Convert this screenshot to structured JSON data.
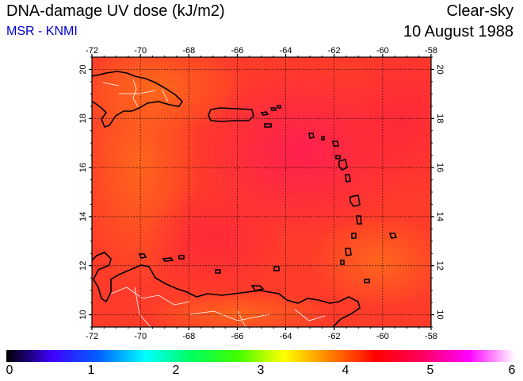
{
  "header": {
    "title": "DNA-damage UV dose (kJ/m2)",
    "credit": "MSR - KNMI",
    "sky": "Clear-sky",
    "date": "10 August 1988"
  },
  "map": {
    "lon_ticks": [
      "-72",
      "-70",
      "-68",
      "-66",
      "-64",
      "-62",
      "-60",
      "-58"
    ],
    "lat_ticks": [
      "10",
      "12",
      "14",
      "16",
      "18",
      "20"
    ],
    "lon_range": [
      -72,
      -58
    ],
    "lat_range": [
      9.5,
      20.5
    ],
    "colors": {
      "base": "#ff3b2a",
      "low": "#ff6a1a",
      "high": "#ff1a50",
      "coast": "#000000",
      "border": "#ffffff",
      "grid": "#000000"
    }
  },
  "legend": {
    "labels": [
      "0",
      "1",
      "2",
      "3",
      "4",
      "5",
      "6"
    ],
    "range": [
      0,
      6
    ],
    "stops": [
      "#000000",
      "#4000ff",
      "#0060ff",
      "#00ffff",
      "#00ff60",
      "#40ff00",
      "#ffff00",
      "#ff8000",
      "#ff0000",
      "#ff0060",
      "#ff00ff",
      "#ffffff"
    ]
  }
}
